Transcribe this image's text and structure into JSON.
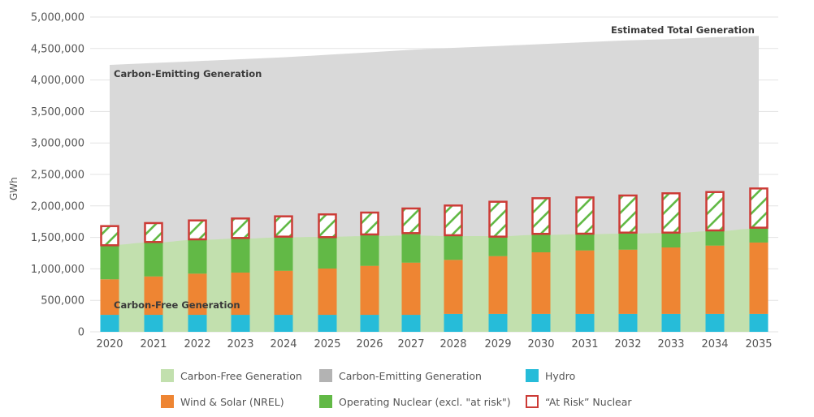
{
  "chart_data": {
    "type": "bar",
    "title": "",
    "xlabel": "",
    "ylabel": "GWh",
    "ylim": [
      0,
      5000000
    ],
    "yticks": [
      0,
      500000,
      1000000,
      1500000,
      2000000,
      2500000,
      3000000,
      3500000,
      4000000,
      4500000,
      5000000
    ],
    "ytick_labels": [
      "0",
      "500,000",
      "1,000,000",
      "1,500,000",
      "2,000,000",
      "2,500,000",
      "3,000,000",
      "3,500,000",
      "4,000,000",
      "4,500,000",
      "5,000,000"
    ],
    "grid": true,
    "categories": [
      "2020",
      "2021",
      "2022",
      "2023",
      "2024",
      "2025",
      "2026",
      "2027",
      "2028",
      "2029",
      "2030",
      "2031",
      "2032",
      "2033",
      "2034",
      "2035"
    ],
    "stacked": true,
    "series": [
      {
        "name": "Hydro",
        "kind": "bar",
        "color": "#26bcd9",
        "values": [
          270000,
          270000,
          270000,
          270000,
          270000,
          270000,
          270000,
          270000,
          285000,
          285000,
          285000,
          285000,
          285000,
          285000,
          285000,
          285000
        ]
      },
      {
        "name": "Wind & Solar (NREL)",
        "kind": "bar",
        "color": "#ee8533",
        "values": [
          564000,
          610000,
          654000,
          671000,
          700000,
          735000,
          778000,
          829000,
          858000,
          917000,
          978000,
          1008000,
          1020000,
          1055000,
          1085000,
          1133000
        ]
      },
      {
        "name": "Operating Nuclear (excl. \"at risk\")",
        "kind": "bar",
        "color": "#62b946",
        "values": [
          528000,
          534000,
          532000,
          537000,
          529000,
          486000,
          486000,
          456000,
          378000,
          297000,
          280000,
          253000,
          258000,
          223000,
          228000,
          223000
        ]
      },
      {
        "name": "\"At Risk\" Nuclear",
        "kind": "bar-hatched",
        "color": "#cc3b36",
        "hatch_color": "#62b946",
        "values": [
          330000,
          326000,
          326000,
          335000,
          348000,
          387000,
          373000,
          417000,
          498000,
          580000,
          592000,
          602000,
          615000,
          650000,
          635000,
          649000
        ]
      },
      {
        "name": "Carbon-Free Generation",
        "kind": "area",
        "color": "#c2e0ae",
        "values": [
          1380000,
          1420000,
          1460000,
          1480000,
          1500000,
          1510000,
          1520000,
          1530000,
          1520000,
          1520000,
          1540000,
          1550000,
          1560000,
          1570000,
          1600000,
          1640000
        ]
      },
      {
        "name": "Carbon-Emitting Generation",
        "kind": "area",
        "color": "#d9d9d9",
        "legend_color": "#b3b3b3",
        "total_values": [
          4240000,
          4270000,
          4300000,
          4330000,
          4360000,
          4400000,
          4440000,
          4480000,
          4510000,
          4540000,
          4570000,
          4600000,
          4630000,
          4650000,
          4680000,
          4700000
        ]
      }
    ],
    "annotations": {
      "estimated_total": "Estimated Total Generation",
      "carbon_emitting": "Carbon-Emitting Generation",
      "carbon_free": "Carbon-Free Generation"
    },
    "legend": {
      "placement": "bottom",
      "items": [
        {
          "label": "Carbon-Free Generation",
          "color": "#c2e0ae",
          "style": "fill"
        },
        {
          "label": "Carbon-Emitting Generation",
          "color": "#b3b3b3",
          "style": "fill"
        },
        {
          "label": "Hydro",
          "color": "#26bcd9",
          "style": "fill"
        },
        {
          "label": "Wind & Solar (NREL)",
          "color": "#ee8533",
          "style": "fill"
        },
        {
          "label": "Operating Nuclear (excl. \"at risk\")",
          "color": "#62b946",
          "style": "fill"
        },
        {
          "label": "“At Risk” Nuclear",
          "color": "#cc3b36",
          "style": "outline"
        }
      ]
    }
  }
}
